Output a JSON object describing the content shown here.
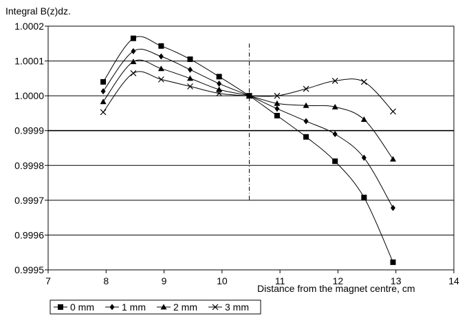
{
  "chart_data": {
    "type": "line",
    "title": "",
    "ylabel": "Integral B(z)dz.",
    "xlabel": "Distance from the magnet centre, cm",
    "xlim": [
      7,
      14
    ],
    "ylim": [
      0.9995,
      1.0002
    ],
    "x_ticks": [
      "7",
      "8",
      "9",
      "10",
      "11",
      "12",
      "13",
      "14"
    ],
    "y_ticks": [
      "0.9995",
      "0.9996",
      "0.9997",
      "0.9998",
      "0.9999",
      "1.0000",
      "1.0001",
      "1.0002"
    ],
    "grid": "horizontal",
    "legend_position": "bottom-left",
    "marker_line": {
      "x": 10.47,
      "y_from": 0.9997,
      "y_to": 1.00015
    },
    "series": [
      {
        "name": "0 mm",
        "marker": "square",
        "x": [
          7.95,
          8.47,
          8.95,
          9.45,
          9.95,
          10.47,
          10.95,
          11.45,
          11.95,
          12.45,
          12.95
        ],
        "y": [
          1.00004,
          1.000165,
          1.000143,
          1.000105,
          1.000055,
          1.0,
          0.999943,
          0.999882,
          0.999812,
          0.999708,
          0.999522
        ]
      },
      {
        "name": "1 mm",
        "marker": "diamond",
        "x": [
          7.95,
          8.47,
          8.95,
          9.45,
          9.95,
          10.47,
          10.95,
          11.45,
          11.95,
          12.45,
          12.95
        ],
        "y": [
          1.000013,
          1.000128,
          1.000113,
          1.000075,
          1.000035,
          1.0,
          0.999963,
          0.999927,
          0.99989,
          0.999822,
          0.999678
        ]
      },
      {
        "name": "2 mm",
        "marker": "triangle",
        "x": [
          7.95,
          8.47,
          8.95,
          9.45,
          9.95,
          10.47,
          10.95,
          11.45,
          11.95,
          12.45,
          12.95
        ],
        "y": [
          0.999983,
          1.000098,
          1.000078,
          1.00005,
          1.000018,
          1.0,
          0.999978,
          0.999972,
          0.999968,
          0.999932,
          0.999818
        ]
      },
      {
        "name": "3 mm",
        "marker": "cross",
        "x": [
          7.95,
          8.47,
          8.95,
          9.45,
          9.95,
          10.47,
          10.95,
          11.45,
          11.95,
          12.45,
          12.95
        ],
        "y": [
          0.999953,
          1.000065,
          1.000047,
          1.000027,
          1.000007,
          1.0,
          1.0,
          1.00002,
          1.000043,
          1.00004,
          0.999955
        ]
      }
    ]
  }
}
